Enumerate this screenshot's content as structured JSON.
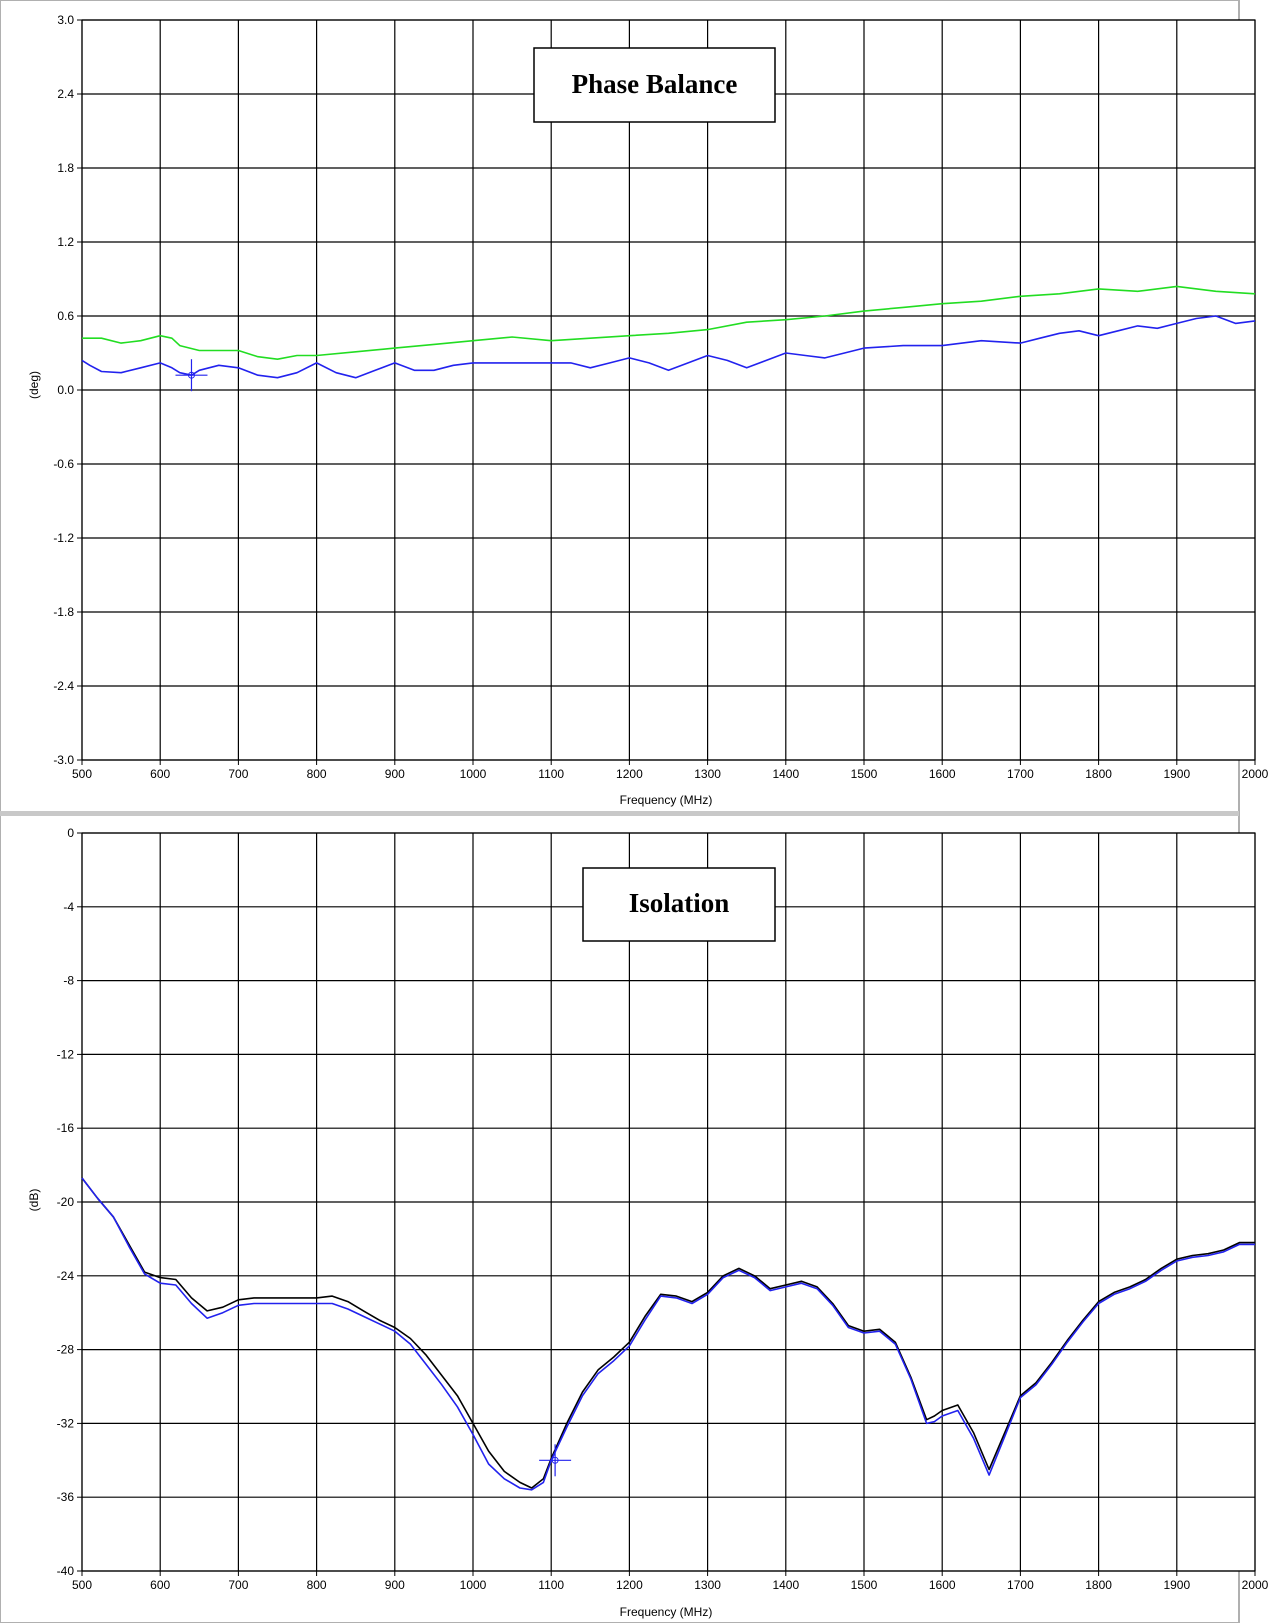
{
  "chart_data": [
    {
      "type": "line",
      "title": "Phase Balance",
      "xlabel": "Frequency (MHz)",
      "ylabel": "(deg)",
      "xlim": [
        500,
        2000
      ],
      "ylim": [
        -3.0,
        3.0
      ],
      "x_ticks": [
        "500",
        "600",
        "700",
        "800",
        "900",
        "1000",
        "1100",
        "1200",
        "1300",
        "1400",
        "1500",
        "1600",
        "1700",
        "1800",
        "1900",
        "2000"
      ],
      "y_ticks": [
        "3.0",
        "2.4",
        "1.8",
        "1.2",
        "0.6",
        "0.0",
        "-0.6",
        "-1.2",
        "-1.8",
        "-2.4",
        "-3.0"
      ],
      "grid": true,
      "series": [
        {
          "color": "#22dd22",
          "x": [
            500,
            525,
            550,
            575,
            600,
            615,
            625,
            650,
            675,
            700,
            725,
            750,
            775,
            800,
            850,
            900,
            950,
            1000,
            1050,
            1100,
            1150,
            1200,
            1250,
            1300,
            1350,
            1400,
            1450,
            1500,
            1550,
            1600,
            1650,
            1700,
            1750,
            1800,
            1850,
            1900,
            1950,
            2000
          ],
          "y": [
            0.42,
            0.42,
            0.38,
            0.4,
            0.44,
            0.42,
            0.36,
            0.32,
            0.32,
            0.32,
            0.27,
            0.25,
            0.28,
            0.28,
            0.31,
            0.34,
            0.37,
            0.4,
            0.43,
            0.4,
            0.42,
            0.44,
            0.46,
            0.49,
            0.55,
            0.57,
            0.6,
            0.64,
            0.67,
            0.7,
            0.72,
            0.76,
            0.78,
            0.82,
            0.8,
            0.84,
            0.8,
            0.78
          ]
        },
        {
          "color": "#2222ee",
          "x": [
            500,
            510,
            525,
            550,
            575,
            600,
            615,
            625,
            640,
            650,
            675,
            700,
            725,
            750,
            775,
            800,
            825,
            850,
            875,
            900,
            925,
            950,
            975,
            1000,
            1050,
            1100,
            1125,
            1150,
            1175,
            1200,
            1225,
            1250,
            1275,
            1300,
            1325,
            1350,
            1375,
            1400,
            1425,
            1450,
            1475,
            1500,
            1550,
            1600,
            1650,
            1700,
            1725,
            1750,
            1775,
            1800,
            1825,
            1850,
            1875,
            1900,
            1925,
            1950,
            1975,
            2000
          ],
          "y": [
            0.24,
            0.2,
            0.15,
            0.14,
            0.18,
            0.22,
            0.18,
            0.14,
            0.12,
            0.16,
            0.2,
            0.18,
            0.12,
            0.1,
            0.14,
            0.22,
            0.14,
            0.1,
            0.16,
            0.22,
            0.16,
            0.16,
            0.2,
            0.22,
            0.22,
            0.22,
            0.22,
            0.18,
            0.22,
            0.26,
            0.22,
            0.16,
            0.22,
            0.28,
            0.24,
            0.18,
            0.24,
            0.3,
            0.28,
            0.26,
            0.3,
            0.34,
            0.36,
            0.36,
            0.4,
            0.38,
            0.42,
            0.46,
            0.48,
            0.44,
            0.48,
            0.52,
            0.5,
            0.54,
            0.58,
            0.6,
            0.54,
            0.56
          ]
        }
      ],
      "cursor": {
        "x": 640,
        "y": 0.12,
        "color": "#2222ee"
      }
    },
    {
      "type": "line",
      "title": "Isolation",
      "xlabel": "Frequency (MHz)",
      "ylabel": "(dB)",
      "xlim": [
        500,
        2000
      ],
      "ylim": [
        -40,
        0
      ],
      "x_ticks": [
        "500",
        "600",
        "700",
        "800",
        "900",
        "1000",
        "1100",
        "1200",
        "1300",
        "1400",
        "1500",
        "1600",
        "1700",
        "1800",
        "1900",
        "2000"
      ],
      "y_ticks": [
        "0",
        "-4",
        "-8",
        "-12",
        "-16",
        "-20",
        "-24",
        "-28",
        "-32",
        "-36",
        "-40"
      ],
      "grid": true,
      "series": [
        {
          "color": "#000000",
          "x": [
            500,
            520,
            540,
            560,
            580,
            600,
            620,
            640,
            660,
            680,
            700,
            720,
            740,
            760,
            780,
            800,
            820,
            840,
            860,
            880,
            900,
            920,
            940,
            960,
            980,
            1000,
            1020,
            1040,
            1060,
            1075,
            1090,
            1100,
            1120,
            1140,
            1160,
            1180,
            1200,
            1220,
            1240,
            1260,
            1280,
            1300,
            1320,
            1340,
            1360,
            1380,
            1400,
            1420,
            1440,
            1460,
            1480,
            1500,
            1520,
            1540,
            1560,
            1580,
            1590,
            1600,
            1620,
            1640,
            1660,
            1680,
            1700,
            1720,
            1740,
            1760,
            1780,
            1800,
            1820,
            1840,
            1860,
            1880,
            1900,
            1920,
            1940,
            1960,
            1980,
            2000
          ],
          "y": [
            -18.7,
            -19.8,
            -20.8,
            -22.3,
            -23.8,
            -24.1,
            -24.2,
            -25.2,
            -25.9,
            -25.7,
            -25.3,
            -25.2,
            -25.2,
            -25.2,
            -25.2,
            -25.2,
            -25.1,
            -25.4,
            -25.9,
            -26.4,
            -26.8,
            -27.4,
            -28.3,
            -29.4,
            -30.5,
            -32.0,
            -33.5,
            -34.6,
            -35.2,
            -35.5,
            -35.0,
            -33.9,
            -32.0,
            -30.3,
            -29.1,
            -28.4,
            -27.6,
            -26.2,
            -25.0,
            -25.1,
            -25.4,
            -24.9,
            -24.0,
            -23.6,
            -24.0,
            -24.7,
            -24.5,
            -24.3,
            -24.6,
            -25.5,
            -26.7,
            -27.0,
            -26.9,
            -27.6,
            -29.5,
            -31.8,
            -31.6,
            -31.3,
            -31.0,
            -32.5,
            -34.5,
            -32.5,
            -30.5,
            -29.8,
            -28.7,
            -27.5,
            -26.4,
            -25.4,
            -24.9,
            -24.6,
            -24.2,
            -23.6,
            -23.1,
            -22.9,
            -22.8,
            -22.6,
            -22.2,
            -22.2
          ]
        },
        {
          "color": "#2222ee",
          "x": [
            500,
            520,
            540,
            560,
            580,
            600,
            620,
            640,
            660,
            680,
            700,
            720,
            740,
            760,
            780,
            800,
            820,
            840,
            860,
            880,
            900,
            920,
            940,
            960,
            980,
            1000,
            1020,
            1040,
            1060,
            1075,
            1090,
            1100,
            1120,
            1140,
            1160,
            1180,
            1200,
            1220,
            1240,
            1260,
            1280,
            1300,
            1320,
            1340,
            1360,
            1380,
            1400,
            1420,
            1440,
            1460,
            1480,
            1500,
            1520,
            1540,
            1560,
            1580,
            1590,
            1600,
            1620,
            1640,
            1660,
            1680,
            1700,
            1720,
            1740,
            1760,
            1780,
            1800,
            1820,
            1840,
            1860,
            1880,
            1900,
            1920,
            1940,
            1960,
            1980,
            2000
          ],
          "y": [
            -18.7,
            -19.8,
            -20.8,
            -22.4,
            -23.9,
            -24.4,
            -24.5,
            -25.5,
            -26.3,
            -26.0,
            -25.6,
            -25.5,
            -25.5,
            -25.5,
            -25.5,
            -25.5,
            -25.5,
            -25.8,
            -26.2,
            -26.6,
            -27.0,
            -27.7,
            -28.8,
            -29.9,
            -31.1,
            -32.6,
            -34.2,
            -35.0,
            -35.5,
            -35.6,
            -35.2,
            -34.0,
            -32.2,
            -30.5,
            -29.3,
            -28.6,
            -27.8,
            -26.4,
            -25.1,
            -25.2,
            -25.5,
            -25.0,
            -24.1,
            -23.7,
            -24.1,
            -24.8,
            -24.6,
            -24.4,
            -24.7,
            -25.6,
            -26.8,
            -27.1,
            -27.0,
            -27.7,
            -29.6,
            -32.0,
            -31.9,
            -31.6,
            -31.3,
            -32.8,
            -34.8,
            -32.7,
            -30.6,
            -29.9,
            -28.8,
            -27.6,
            -26.5,
            -25.5,
            -25.0,
            -24.7,
            -24.3,
            -23.7,
            -23.2,
            -23.0,
            -22.9,
            -22.7,
            -22.3,
            -22.3
          ]
        }
      ],
      "cursor": {
        "x": 1105,
        "y": -34.0,
        "color": "#2222ee"
      }
    }
  ]
}
